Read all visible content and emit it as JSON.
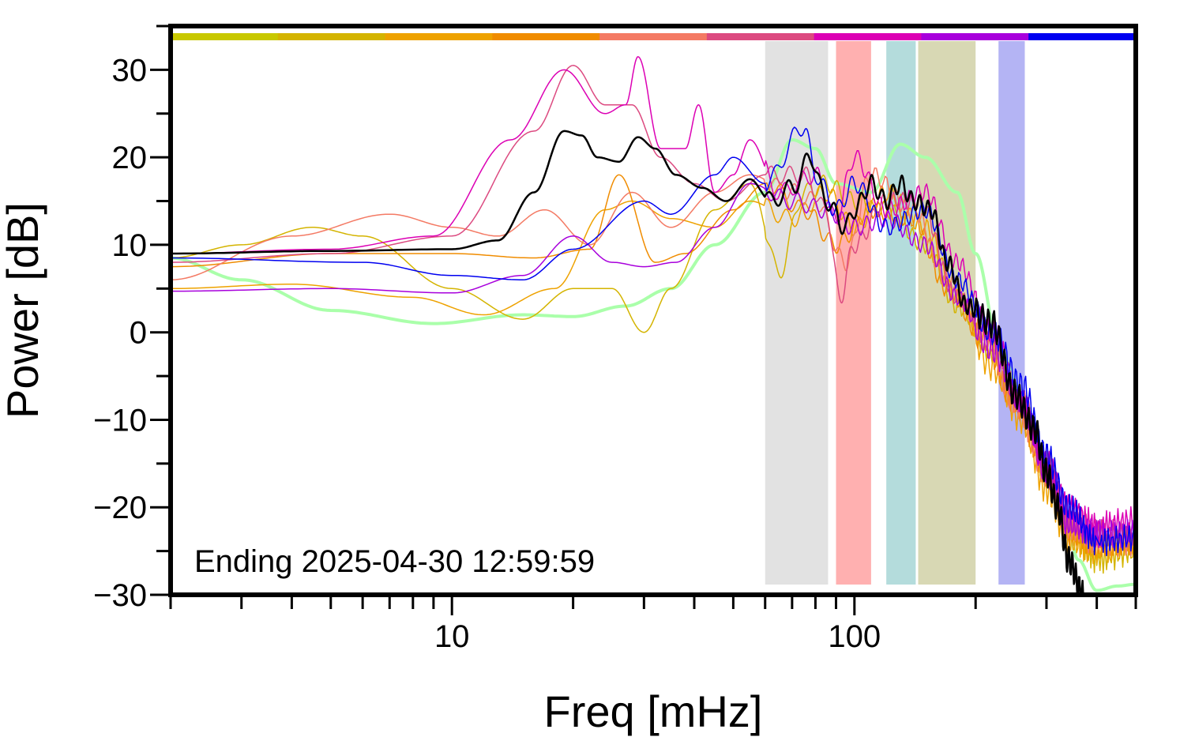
{
  "chart_data": {
    "type": "line",
    "xlabel": "Freq [mHz]",
    "ylabel": "Power [dB]",
    "annotation": "Ending 2025-04-30 12:59:59",
    "x_scale": "log",
    "xlim": [
      2,
      500
    ],
    "ylim": [
      -30,
      35
    ],
    "x_ticks": [
      10,
      100
    ],
    "y_ticks": [
      30,
      20,
      10,
      0,
      -10,
      -20,
      -30
    ],
    "y_tick_labels": [
      "30",
      "20",
      "10",
      "0",
      "−10",
      "−20",
      "−30"
    ],
    "grid": false,
    "legend": "none",
    "colorbar": [
      "#c8c800",
      "#d4b400",
      "#eea200",
      "#f08c00",
      "#f47a64",
      "#dc4a80",
      "#dc00b4",
      "#a800dc",
      "#0000f0"
    ],
    "bands": [
      {
        "from": 60,
        "to": 86,
        "color": "#e2e2e2"
      },
      {
        "from": 90,
        "to": 110,
        "color": "#ffb0b0"
      },
      {
        "from": 120,
        "to": 142,
        "color": "#b4dcdc"
      },
      {
        "from": 144,
        "to": 200,
        "color": "#d8d8b4"
      },
      {
        "from": 228,
        "to": 265,
        "color": "#b4b4f4"
      }
    ],
    "series": [
      {
        "color": "#aaffaa",
        "width": 4,
        "values": [
          [
            2,
            8.5
          ],
          [
            3,
            6
          ],
          [
            5,
            2.5
          ],
          [
            9,
            1
          ],
          [
            15,
            2
          ],
          [
            20,
            1.8
          ],
          [
            27,
            3
          ],
          [
            35,
            5
          ],
          [
            45,
            10
          ],
          [
            60,
            16
          ],
          [
            70,
            22
          ],
          [
            80,
            21
          ],
          [
            90,
            17
          ],
          [
            110,
            16
          ],
          [
            130,
            21.5
          ],
          [
            150,
            20
          ],
          [
            180,
            16
          ],
          [
            200,
            9
          ],
          [
            230,
            -2
          ],
          [
            260,
            -7
          ],
          [
            300,
            -15
          ],
          [
            330,
            -20
          ],
          [
            360,
            -26
          ],
          [
            400,
            -29.5
          ],
          [
            450,
            -29
          ],
          [
            500,
            -28.8
          ]
        ]
      },
      {
        "color": "#d4b400",
        "width": 1.5,
        "values": [
          [
            2,
            8.5
          ],
          [
            3,
            10
          ],
          [
            4.5,
            12
          ],
          [
            6,
            11
          ],
          [
            10,
            5
          ],
          [
            15,
            1.5
          ],
          [
            20,
            5
          ],
          [
            25,
            5
          ],
          [
            30,
            0
          ],
          [
            35,
            5
          ],
          [
            45,
            14
          ],
          [
            55,
            17
          ],
          [
            65,
            7
          ],
          [
            75,
            16
          ],
          [
            85,
            17
          ],
          [
            100,
            15
          ],
          [
            120,
            14
          ],
          [
            150,
            10
          ],
          [
            180,
            3
          ],
          [
            220,
            -2
          ],
          [
            260,
            -8
          ],
          [
            300,
            -16
          ],
          [
            340,
            -22
          ],
          [
            400,
            -26
          ],
          [
            500,
            -25
          ]
        ]
      },
      {
        "color": "#eea200",
        "width": 1.5,
        "values": [
          [
            2,
            5
          ],
          [
            4,
            5.5
          ],
          [
            8,
            4
          ],
          [
            12,
            2
          ],
          [
            18,
            5
          ],
          [
            24,
            14
          ],
          [
            28,
            15
          ],
          [
            35,
            13
          ],
          [
            45,
            12
          ],
          [
            55,
            15
          ],
          [
            70,
            13
          ],
          [
            85,
            16
          ],
          [
            100,
            12
          ],
          [
            120,
            16
          ],
          [
            150,
            12
          ],
          [
            180,
            4
          ],
          [
            220,
            -4
          ],
          [
            260,
            -10
          ],
          [
            300,
            -18
          ],
          [
            340,
            -24
          ],
          [
            400,
            -25
          ],
          [
            500,
            -24
          ]
        ]
      },
      {
        "color": "#f08c00",
        "width": 1.5,
        "values": [
          [
            2,
            7.5
          ],
          [
            5,
            9
          ],
          [
            10,
            9
          ],
          [
            16,
            8.5
          ],
          [
            22,
            9.5
          ],
          [
            26,
            18
          ],
          [
            32,
            8
          ],
          [
            38,
            9
          ],
          [
            50,
            14
          ],
          [
            60,
            17
          ],
          [
            75,
            14
          ],
          [
            90,
            10
          ],
          [
            110,
            14
          ],
          [
            140,
            13
          ],
          [
            170,
            5
          ],
          [
            210,
            -1
          ],
          [
            250,
            -8
          ],
          [
            300,
            -16
          ],
          [
            340,
            -23
          ],
          [
            400,
            -24
          ],
          [
            500,
            -24
          ]
        ]
      },
      {
        "color": "#f47a64",
        "width": 1.5,
        "values": [
          [
            2,
            6
          ],
          [
            4,
            11
          ],
          [
            7,
            13.5
          ],
          [
            10,
            12
          ],
          [
            13,
            11
          ],
          [
            17,
            14
          ],
          [
            22,
            10
          ],
          [
            28,
            16
          ],
          [
            35,
            12
          ],
          [
            45,
            16
          ],
          [
            55,
            18
          ],
          [
            70,
            16
          ],
          [
            80,
            15
          ],
          [
            95,
            8
          ],
          [
            110,
            18
          ],
          [
            140,
            14
          ],
          [
            170,
            6
          ],
          [
            210,
            0
          ],
          [
            250,
            -8
          ],
          [
            300,
            -16
          ],
          [
            340,
            -22
          ],
          [
            400,
            -24
          ],
          [
            500,
            -24
          ]
        ]
      },
      {
        "color": "#dc4a80",
        "width": 1.5,
        "values": [
          [
            2,
            8
          ],
          [
            5,
            9
          ],
          [
            10,
            11
          ],
          [
            16,
            23
          ],
          [
            20,
            30.5
          ],
          [
            24,
            26
          ],
          [
            28,
            26
          ],
          [
            33,
            20
          ],
          [
            40,
            17
          ],
          [
            48,
            15
          ],
          [
            60,
            18
          ],
          [
            75,
            18
          ],
          [
            85,
            14
          ],
          [
            92,
            4
          ],
          [
            100,
            10
          ],
          [
            120,
            15
          ],
          [
            145,
            15
          ],
          [
            180,
            4
          ],
          [
            220,
            -1
          ],
          [
            260,
            -8
          ],
          [
            300,
            -15
          ],
          [
            340,
            -21
          ],
          [
            400,
            -23
          ],
          [
            500,
            -23
          ]
        ]
      },
      {
        "color": "#dc00b4",
        "width": 1.5,
        "values": [
          [
            2,
            9
          ],
          [
            5,
            9.5
          ],
          [
            9,
            11
          ],
          [
            14,
            22
          ],
          [
            19,
            30
          ],
          [
            24,
            25
          ],
          [
            27,
            26
          ],
          [
            29,
            31.5
          ],
          [
            33,
            21
          ],
          [
            38,
            21
          ],
          [
            41,
            26
          ],
          [
            45,
            16
          ],
          [
            50,
            18
          ],
          [
            55,
            22
          ],
          [
            65,
            16
          ],
          [
            80,
            18
          ],
          [
            90,
            13
          ],
          [
            100,
            20
          ],
          [
            120,
            14
          ],
          [
            150,
            16
          ],
          [
            180,
            8
          ],
          [
            220,
            0
          ],
          [
            260,
            -8
          ],
          [
            300,
            -15
          ],
          [
            340,
            -20
          ],
          [
            400,
            -22
          ],
          [
            500,
            -21.5
          ]
        ]
      },
      {
        "color": "#a800dc",
        "width": 1.5,
        "values": [
          [
            2,
            4.7
          ],
          [
            5,
            5
          ],
          [
            10,
            4.5
          ],
          [
            15,
            6.5
          ],
          [
            20,
            11
          ],
          [
            25,
            8
          ],
          [
            30,
            7.5
          ],
          [
            36,
            8
          ],
          [
            45,
            12
          ],
          [
            55,
            17
          ],
          [
            70,
            15
          ],
          [
            85,
            14
          ],
          [
            100,
            12
          ],
          [
            120,
            13
          ],
          [
            150,
            10
          ],
          [
            180,
            4
          ],
          [
            220,
            -2
          ],
          [
            260,
            -8
          ],
          [
            300,
            -16
          ],
          [
            340,
            -22
          ],
          [
            400,
            -23
          ],
          [
            500,
            -23
          ]
        ]
      },
      {
        "color": "#0000f0",
        "width": 1.5,
        "values": [
          [
            2,
            8.5
          ],
          [
            6,
            8
          ],
          [
            10,
            6.5
          ],
          [
            15,
            6
          ],
          [
            20,
            9.5
          ],
          [
            30,
            15
          ],
          [
            35,
            13.5
          ],
          [
            45,
            18
          ],
          [
            50,
            20
          ],
          [
            60,
            17
          ],
          [
            75,
            23.5
          ],
          [
            80,
            18
          ],
          [
            90,
            14
          ],
          [
            100,
            17
          ],
          [
            120,
            12
          ],
          [
            150,
            14
          ],
          [
            180,
            6
          ],
          [
            220,
            0
          ],
          [
            260,
            -6
          ],
          [
            300,
            -14
          ],
          [
            340,
            -20
          ],
          [
            400,
            -24
          ],
          [
            500,
            -23.5
          ]
        ]
      },
      {
        "color": "#000000",
        "width": 2.5,
        "values": [
          [
            2,
            9
          ],
          [
            5,
            9.3
          ],
          [
            10,
            9.5
          ],
          [
            13,
            10.5
          ],
          [
            16,
            16
          ],
          [
            19,
            23
          ],
          [
            21,
            22.5
          ],
          [
            23,
            20
          ],
          [
            26,
            19.5
          ],
          [
            29,
            22.3
          ],
          [
            32,
            21
          ],
          [
            36,
            18
          ],
          [
            42,
            16.5
          ],
          [
            48,
            15
          ],
          [
            55,
            17.5
          ],
          [
            62,
            15
          ],
          [
            70,
            16.5
          ],
          [
            78,
            20
          ],
          [
            85,
            15
          ],
          [
            95,
            12
          ],
          [
            100,
            14
          ],
          [
            110,
            17
          ],
          [
            120,
            15
          ],
          [
            130,
            17
          ],
          [
            140,
            15
          ],
          [
            155,
            14
          ],
          [
            170,
            8
          ],
          [
            190,
            3
          ],
          [
            220,
            1
          ],
          [
            250,
            -7
          ],
          [
            280,
            -11
          ],
          [
            300,
            -16
          ],
          [
            320,
            -20
          ],
          [
            340,
            -26
          ],
          [
            370,
            -30
          ]
        ]
      }
    ]
  }
}
